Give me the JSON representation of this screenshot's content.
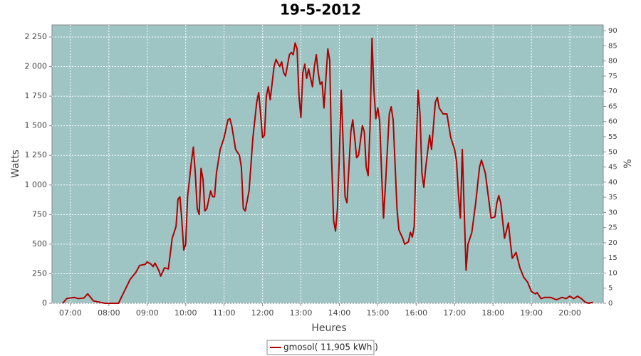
{
  "chart_data": {
    "type": "line",
    "title": "19-5-2012",
    "xlabel": "Heures",
    "ylabel": "Watts",
    "y2label": "%",
    "x": [
      6.8,
      6.9,
      7.0,
      7.1,
      7.2,
      7.35,
      7.45,
      7.6,
      7.75,
      7.9,
      8.25,
      8.4,
      8.55,
      8.7,
      8.8,
      8.95,
      9.0,
      9.1,
      9.15,
      9.2,
      9.3,
      9.35,
      9.45,
      9.55,
      9.65,
      9.75,
      9.8,
      9.85,
      9.9,
      9.95,
      10.0,
      10.05,
      10.15,
      10.2,
      10.25,
      10.3,
      10.35,
      10.4,
      10.45,
      10.5,
      10.55,
      10.65,
      10.7,
      10.75,
      10.8,
      10.9,
      11.0,
      11.1,
      11.15,
      11.2,
      11.3,
      11.4,
      11.45,
      11.5,
      11.55,
      11.65,
      11.75,
      11.85,
      11.9,
      11.95,
      12.0,
      12.05,
      12.1,
      12.15,
      12.2,
      12.3,
      12.35,
      12.45,
      12.5,
      12.55,
      12.6,
      12.7,
      12.75,
      12.8,
      12.85,
      12.9,
      12.95,
      13.0,
      13.05,
      13.1,
      13.15,
      13.2,
      13.3,
      13.35,
      13.4,
      13.45,
      13.5,
      13.55,
      13.6,
      13.65,
      13.7,
      13.75,
      13.8,
      13.85,
      13.9,
      13.95,
      14.0,
      14.05,
      14.1,
      14.15,
      14.2,
      14.3,
      14.35,
      14.4,
      14.45,
      14.5,
      14.6,
      14.65,
      14.7,
      14.75,
      14.8,
      14.85,
      14.9,
      14.95,
      15.0,
      15.05,
      15.1,
      15.15,
      15.2,
      15.3,
      15.35,
      15.4,
      15.5,
      15.55,
      15.65,
      15.7,
      15.8,
      15.85,
      15.9,
      15.95,
      16.0,
      16.05,
      16.1,
      16.15,
      16.2,
      16.25,
      16.35,
      16.4,
      16.5,
      16.55,
      16.6,
      16.7,
      16.8,
      16.9,
      17.0,
      17.05,
      17.1,
      17.15,
      17.2,
      17.25,
      17.3,
      17.35,
      17.45,
      17.55,
      17.65,
      17.7,
      17.8,
      17.9,
      17.95,
      18.05,
      18.1,
      18.15,
      18.2,
      18.3,
      18.4,
      18.45,
      18.5,
      18.6,
      18.7,
      18.8,
      18.9,
      19.0,
      19.1,
      19.15,
      19.25,
      19.35,
      19.5,
      19.65,
      19.8,
      19.9,
      20.0,
      20.1,
      20.2,
      20.3,
      20.4,
      20.5,
      20.6
    ],
    "series": [
      {
        "name": "gmosol( 11,905 kWh )",
        "color": "#b00000",
        "values": [
          0,
          40,
          45,
          50,
          40,
          45,
          80,
          20,
          10,
          0,
          0,
          100,
          200,
          260,
          320,
          330,
          350,
          330,
          310,
          340,
          280,
          230,
          300,
          290,
          550,
          650,
          880,
          900,
          700,
          450,
          500,
          900,
          1200,
          1320,
          1100,
          800,
          750,
          1140,
          1050,
          780,
          800,
          950,
          900,
          900,
          1100,
          1300,
          1400,
          1550,
          1560,
          1500,
          1300,
          1250,
          1150,
          800,
          780,
          950,
          1400,
          1700,
          1780,
          1600,
          1400,
          1420,
          1750,
          1830,
          1720,
          2000,
          2060,
          2000,
          2040,
          1950,
          1920,
          2100,
          2120,
          2100,
          2200,
          2150,
          1750,
          1570,
          1950,
          2020,
          1900,
          1980,
          1830,
          2000,
          2100,
          1950,
          1850,
          1870,
          1650,
          1900,
          2150,
          2050,
          1200,
          700,
          610,
          800,
          1250,
          1800,
          1350,
          900,
          850,
          1450,
          1550,
          1400,
          1230,
          1250,
          1500,
          1450,
          1150,
          1080,
          1500,
          2240,
          1800,
          1560,
          1650,
          1540,
          1100,
          720,
          1000,
          1600,
          1660,
          1550,
          800,
          620,
          550,
          500,
          520,
          600,
          560,
          650,
          1300,
          1800,
          1600,
          1100,
          980,
          1150,
          1420,
          1300,
          1700,
          1740,
          1650,
          1600,
          1600,
          1400,
          1300,
          1200,
          920,
          720,
          1300,
          800,
          280,
          500,
          600,
          850,
          1150,
          1210,
          1100,
          850,
          720,
          730,
          850,
          910,
          850,
          550,
          680,
          520,
          380,
          430,
          300,
          220,
          180,
          100,
          80,
          90,
          40,
          50,
          50,
          30,
          50,
          40,
          60,
          40,
          60,
          40,
          10,
          0,
          10
        ]
      }
    ],
    "xlim": [
      6.52,
      20.87
    ],
    "xticks": [
      {
        "value": 7,
        "label": "07:00"
      },
      {
        "value": 8,
        "label": "08:00"
      },
      {
        "value": 9,
        "label": "09:00"
      },
      {
        "value": 10,
        "label": "10:00"
      },
      {
        "value": 11,
        "label": "11:00"
      },
      {
        "value": 12,
        "label": "12:00"
      },
      {
        "value": 13,
        "label": "13:00"
      },
      {
        "value": 14,
        "label": "14:00"
      },
      {
        "value": 15,
        "label": "15:00"
      },
      {
        "value": 16,
        "label": "16:00"
      },
      {
        "value": 17,
        "label": "17:00"
      },
      {
        "value": 18,
        "label": "18:00"
      },
      {
        "value": 19,
        "label": "19:00"
      },
      {
        "value": 20,
        "label": "20:00"
      }
    ],
    "ylim": [
      0,
      2352
    ],
    "yticks": [
      0,
      250,
      500,
      750,
      {
        "value": 1000,
        "label": "1 000"
      },
      {
        "value": 1250,
        "label": "1 250"
      },
      {
        "value": 1500,
        "label": "1 500"
      },
      {
        "value": 1750,
        "label": "1 750"
      },
      {
        "value": 2000,
        "label": "2 000"
      },
      {
        "value": 2250,
        "label": "2 250"
      }
    ],
    "y2lim": [
      0,
      91.9
    ],
    "y2ticks": [
      0,
      5,
      10,
      15,
      20,
      25,
      30,
      35,
      40,
      45,
      50,
      55,
      60,
      65,
      70,
      75,
      80,
      85,
      90
    ],
    "grid": true,
    "legend": "bottom"
  }
}
